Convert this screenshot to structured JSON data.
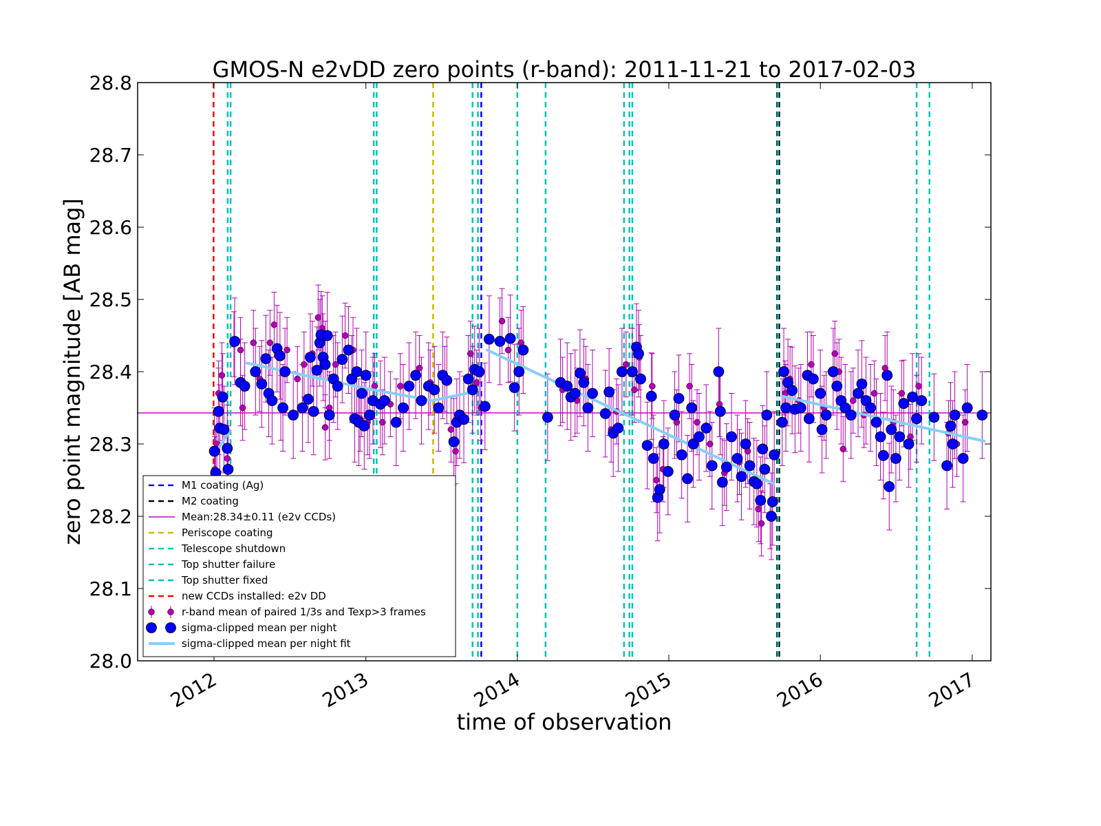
{
  "chart_data": {
    "type": "scatter",
    "title": "GMOS-N e2vDD zero points (r-band): 2011-11-21 to 2017-02-03",
    "xlabel": "time of observation",
    "ylabel": "zero point magnitude [AB mag]",
    "xlim": [
      "2011-07-01",
      "2017-02-15"
    ],
    "ylim": [
      28.0,
      28.8
    ],
    "x_ticks": [
      "2012",
      "2013",
      "2014",
      "2015",
      "2016",
      "2017"
    ],
    "y_ticks": [
      "28.0",
      "28.1",
      "28.2",
      "28.3",
      "28.4",
      "28.5",
      "28.6",
      "28.7",
      "28.8"
    ],
    "grid": false,
    "legend_position": "lower-left",
    "colors": {
      "m1": "#0000ff",
      "m2": "#000000",
      "mean": "#cc00cc",
      "periscope": "#ccb800",
      "shutdown": "#00c2b8",
      "new_ccds": "#ff0000",
      "frames": "#b000b0",
      "night": "#0000ff",
      "fit": "#87cefa"
    },
    "mean": {
      "value": 28.343,
      "label": "Mean:28.34±0.11 (e2v CCDs)"
    },
    "events": [
      {
        "key": "m1",
        "label": "M1 coating (Ag)",
        "dates": [
          "2013-10-06"
        ]
      },
      {
        "key": "m2",
        "label": "M2 coating",
        "dates": [
          "2015-09-19",
          "2015-09-24"
        ]
      },
      {
        "key": "periscope",
        "label": "Periscope coating",
        "dates": [
          "2013-06-12"
        ]
      },
      {
        "key": "shutdown",
        "label": "Telescope shutdown",
        "dates": [
          "2012-02-03",
          "2013-01-20",
          "2013-09-15",
          "2014-01-01",
          "2014-09-15",
          "2015-09-21"
        ]
      },
      {
        "key": "shutdown",
        "label": "Top shutter failure",
        "dates": [
          "2012-02-10",
          "2013-01-27",
          "2013-09-28",
          "2014-03-10",
          "2014-10-05",
          "2016-08-20"
        ]
      },
      {
        "key": "shutdown",
        "label": "Top shutter fixed",
        "dates": [
          "2014-09-28",
          "2016-09-20"
        ]
      },
      {
        "key": "new_ccds",
        "label": "new CCDs installed: e2v DD",
        "dates": [
          "2011-12-31"
        ]
      }
    ],
    "series": [
      {
        "key": "frames",
        "name": "r-band mean of paired 1/3s and Texp>3 frames",
        "type": "scatter-errorbar"
      },
      {
        "key": "night",
        "name": "sigma-clipped mean per night",
        "type": "scatter"
      },
      {
        "key": "fit",
        "name": "sigma-clipped mean per night fit",
        "type": "line"
      }
    ],
    "fit_segments": [
      {
        "x": [
          "2011-12-31",
          "2012-02-08"
        ],
        "y": [
          28.284,
          28.318
        ]
      },
      {
        "x": [
          "2012-03-20",
          "2013-01-10",
          "2013-06-10",
          "2013-09-15"
        ],
        "y": [
          28.412,
          28.376,
          28.36,
          28.372
        ]
      },
      {
        "x": [
          "2013-10-20",
          "2015-09-10"
        ],
        "y": [
          28.43,
          28.245
        ]
      },
      {
        "x": [
          "2015-10-01",
          "2017-01-30"
        ],
        "y": [
          28.366,
          28.304
        ]
      }
    ],
    "night_points": [
      [
        "2012-01-02",
        28.29
      ],
      [
        "2012-01-05",
        28.26
      ],
      [
        "2012-01-12",
        28.345
      ],
      [
        "2012-01-15",
        28.322
      ],
      [
        "2012-01-22",
        28.365
      ],
      [
        "2012-01-25",
        28.32
      ],
      [
        "2012-02-02",
        28.294
      ],
      [
        "2012-02-04",
        28.265
      ],
      [
        "2012-02-20",
        28.442
      ],
      [
        "2012-03-05",
        28.385
      ],
      [
        "2012-03-15",
        28.38
      ],
      [
        "2012-04-10",
        28.4
      ],
      [
        "2012-04-25",
        28.383
      ],
      [
        "2012-05-05",
        28.418
      ],
      [
        "2012-05-12",
        28.37
      ],
      [
        "2012-05-20",
        28.36
      ],
      [
        "2012-06-01",
        28.432
      ],
      [
        "2012-06-08",
        28.422
      ],
      [
        "2012-06-15",
        28.35
      ],
      [
        "2012-06-20",
        28.4
      ],
      [
        "2012-07-10",
        28.34
      ],
      [
        "2012-08-01",
        28.35
      ],
      [
        "2012-08-15",
        28.362
      ],
      [
        "2012-08-20",
        28.42
      ],
      [
        "2012-08-28",
        28.345
      ],
      [
        "2012-09-05",
        28.402
      ],
      [
        "2012-09-12",
        28.44
      ],
      [
        "2012-09-15",
        28.451
      ],
      [
        "2012-09-20",
        28.42
      ],
      [
        "2012-09-25",
        28.41
      ],
      [
        "2012-09-30",
        28.45
      ],
      [
        "2012-10-05",
        28.34
      ],
      [
        "2012-10-15",
        28.39
      ],
      [
        "2012-10-25",
        28.38
      ],
      [
        "2012-11-05",
        28.417
      ],
      [
        "2012-11-20",
        28.43
      ],
      [
        "2012-11-28",
        28.39
      ],
      [
        "2012-12-05",
        28.335
      ],
      [
        "2012-12-10",
        28.4
      ],
      [
        "2012-12-15",
        28.33
      ],
      [
        "2012-12-22",
        28.37
      ],
      [
        "2012-12-28",
        28.325
      ],
      [
        "2013-01-01",
        28.395
      ],
      [
        "2013-01-10",
        28.34
      ],
      [
        "2013-01-18",
        28.36
      ],
      [
        "2013-02-05",
        28.355
      ],
      [
        "2013-02-15",
        28.36
      ],
      [
        "2013-03-15",
        28.33
      ],
      [
        "2013-04-01",
        28.35
      ],
      [
        "2013-04-15",
        28.38
      ],
      [
        "2013-05-01",
        28.395
      ],
      [
        "2013-05-15",
        28.36
      ],
      [
        "2013-06-01",
        28.38
      ],
      [
        "2013-06-15",
        28.375
      ],
      [
        "2013-06-25",
        28.35
      ],
      [
        "2013-07-05",
        28.395
      ],
      [
        "2013-07-15",
        28.388
      ],
      [
        "2013-08-01",
        28.303
      ],
      [
        "2013-08-08",
        28.33
      ],
      [
        "2013-08-15",
        28.34
      ],
      [
        "2013-08-25",
        28.334
      ],
      [
        "2013-09-05",
        28.39
      ],
      [
        "2013-09-15",
        28.375
      ],
      [
        "2013-09-20",
        28.403
      ],
      [
        "2013-10-01",
        28.4
      ],
      [
        "2013-10-15",
        28.352
      ],
      [
        "2013-10-25",
        28.445
      ],
      [
        "2013-11-20",
        28.442
      ],
      [
        "2013-12-15",
        28.446
      ],
      [
        "2013-12-25",
        28.378
      ],
      [
        "2014-01-05",
        28.4
      ],
      [
        "2014-01-15",
        28.43
      ],
      [
        "2014-03-15",
        28.337
      ],
      [
        "2014-04-15",
        28.385
      ],
      [
        "2014-05-01",
        28.38
      ],
      [
        "2014-05-10",
        28.365
      ],
      [
        "2014-05-20",
        28.37
      ],
      [
        "2014-06-01",
        28.398
      ],
      [
        "2014-06-10",
        28.385
      ],
      [
        "2014-06-20",
        28.35
      ],
      [
        "2014-07-01",
        28.37
      ],
      [
        "2014-08-01",
        28.342
      ],
      [
        "2014-08-10",
        28.372
      ],
      [
        "2014-08-20",
        28.315
      ],
      [
        "2014-09-01",
        28.322
      ],
      [
        "2014-09-10",
        28.4
      ],
      [
        "2014-10-05",
        28.4
      ],
      [
        "2014-10-15",
        28.434
      ],
      [
        "2014-10-20",
        28.425
      ],
      [
        "2014-10-25",
        28.39
      ],
      [
        "2014-11-10",
        28.298
      ],
      [
        "2014-11-20",
        28.366
      ],
      [
        "2014-11-25",
        28.28
      ],
      [
        "2014-12-05",
        28.226
      ],
      [
        "2014-12-10",
        28.237
      ],
      [
        "2014-12-20",
        28.3
      ],
      [
        "2014-12-30",
        28.262
      ],
      [
        "2015-01-15",
        28.34
      ],
      [
        "2015-01-25",
        28.363
      ],
      [
        "2015-02-01",
        28.285
      ],
      [
        "2015-02-15",
        28.252
      ],
      [
        "2015-02-25",
        28.35
      ],
      [
        "2015-03-01",
        28.3
      ],
      [
        "2015-03-15",
        28.31
      ],
      [
        "2015-04-01",
        28.322
      ],
      [
        "2015-04-15",
        28.27
      ],
      [
        "2015-05-01",
        28.4
      ],
      [
        "2015-05-05",
        28.345
      ],
      [
        "2015-05-10",
        28.247
      ],
      [
        "2015-05-20",
        28.268
      ],
      [
        "2015-06-01",
        28.31
      ],
      [
        "2015-06-15",
        28.28
      ],
      [
        "2015-06-25",
        28.255
      ],
      [
        "2015-07-05",
        28.3
      ],
      [
        "2015-07-15",
        28.27
      ],
      [
        "2015-07-25",
        28.248
      ],
      [
        "2015-08-01",
        28.245
      ],
      [
        "2015-08-10",
        28.222
      ],
      [
        "2015-08-15",
        28.293
      ],
      [
        "2015-08-20",
        28.265
      ],
      [
        "2015-08-25",
        28.34
      ],
      [
        "2015-09-05",
        28.2
      ],
      [
        "2015-09-08",
        28.22
      ],
      [
        "2015-09-12",
        28.285
      ],
      [
        "2015-10-01",
        28.33
      ],
      [
        "2015-10-05",
        28.4
      ],
      [
        "2015-10-10",
        28.35
      ],
      [
        "2015-10-15",
        28.385
      ],
      [
        "2015-10-25",
        28.374
      ],
      [
        "2015-11-01",
        28.348
      ],
      [
        "2015-11-15",
        28.35
      ],
      [
        "2015-12-01",
        28.395
      ],
      [
        "2015-12-05",
        28.335
      ],
      [
        "2015-12-15",
        28.39
      ],
      [
        "2016-01-01",
        28.37
      ],
      [
        "2016-01-05",
        28.32
      ],
      [
        "2016-01-15",
        28.34
      ],
      [
        "2016-02-01",
        28.4
      ],
      [
        "2016-02-10",
        28.38
      ],
      [
        "2016-02-20",
        28.36
      ],
      [
        "2016-03-01",
        28.35
      ],
      [
        "2016-03-15",
        28.34
      ],
      [
        "2016-04-01",
        28.37
      ],
      [
        "2016-04-10",
        28.383
      ],
      [
        "2016-04-20",
        28.36
      ],
      [
        "2016-05-01",
        28.35
      ],
      [
        "2016-05-15",
        28.33
      ],
      [
        "2016-05-25",
        28.31
      ],
      [
        "2016-06-01",
        28.284
      ],
      [
        "2016-06-10",
        28.395
      ],
      [
        "2016-06-15",
        28.241
      ],
      [
        "2016-06-20",
        28.32
      ],
      [
        "2016-07-01",
        28.28
      ],
      [
        "2016-07-10",
        28.31
      ],
      [
        "2016-07-20",
        28.356
      ],
      [
        "2016-08-01",
        28.3
      ],
      [
        "2016-08-10",
        28.365
      ],
      [
        "2016-08-20",
        28.335
      ],
      [
        "2016-09-01",
        28.36
      ],
      [
        "2016-10-01",
        28.337
      ],
      [
        "2016-11-01",
        28.27
      ],
      [
        "2016-11-10",
        28.325
      ],
      [
        "2016-11-15",
        28.3
      ],
      [
        "2016-11-20",
        28.34
      ],
      [
        "2016-12-10",
        28.28
      ],
      [
        "2016-12-20",
        28.35
      ],
      [
        "2017-01-25",
        28.34
      ]
    ],
    "frame_points": [
      [
        "2012-01-01",
        28.22
      ],
      [
        "2012-01-03",
        28.265
      ],
      [
        "2012-01-08",
        28.3
      ],
      [
        "2012-01-12",
        28.37
      ],
      [
        "2012-01-20",
        28.395
      ],
      [
        "2012-02-02",
        28.28
      ],
      [
        "2012-02-18",
        28.438
      ],
      [
        "2012-03-05",
        28.43
      ],
      [
        "2012-03-10",
        28.35
      ],
      [
        "2012-04-05",
        28.44
      ],
      [
        "2012-04-20",
        28.39
      ],
      [
        "2012-05-15",
        28.44
      ],
      [
        "2012-05-25",
        28.465
      ],
      [
        "2012-06-10",
        28.35
      ],
      [
        "2012-06-25",
        28.43
      ],
      [
        "2012-07-20",
        28.39
      ],
      [
        "2012-08-05",
        28.41
      ],
      [
        "2012-08-25",
        28.425
      ],
      [
        "2012-09-08",
        28.475
      ],
      [
        "2012-09-18",
        28.46
      ],
      [
        "2012-09-25",
        28.323
      ],
      [
        "2012-10-05",
        28.35
      ],
      [
        "2012-10-20",
        28.41
      ],
      [
        "2012-11-12",
        28.45
      ],
      [
        "2012-12-01",
        28.43
      ],
      [
        "2012-12-18",
        28.335
      ],
      [
        "2013-01-05",
        28.33
      ],
      [
        "2013-01-22",
        28.38
      ],
      [
        "2013-02-10",
        28.33
      ],
      [
        "2013-03-01",
        28.355
      ],
      [
        "2013-03-25",
        28.38
      ],
      [
        "2013-05-10",
        28.405
      ],
      [
        "2013-06-05",
        28.385
      ],
      [
        "2013-07-10",
        28.39
      ],
      [
        "2013-07-25",
        28.32
      ],
      [
        "2013-08-05",
        28.29
      ],
      [
        "2013-09-10",
        28.425
      ],
      [
        "2013-09-25",
        28.385
      ],
      [
        "2013-10-05",
        28.35
      ],
      [
        "2013-11-25",
        28.47
      ],
      [
        "2013-12-10",
        28.43
      ],
      [
        "2014-01-10",
        28.44
      ],
      [
        "2014-04-20",
        28.375
      ],
      [
        "2014-05-25",
        28.36
      ],
      [
        "2014-06-15",
        28.39
      ],
      [
        "2014-08-15",
        28.32
      ],
      [
        "2014-08-28",
        28.345
      ],
      [
        "2014-09-20",
        28.41
      ],
      [
        "2014-10-10",
        28.375
      ],
      [
        "2014-10-22",
        28.42
      ],
      [
        "2014-11-22",
        28.38
      ],
      [
        "2014-12-02",
        28.25
      ],
      [
        "2014-12-18",
        28.265
      ],
      [
        "2015-01-20",
        28.33
      ],
      [
        "2015-02-20",
        28.38
      ],
      [
        "2015-03-10",
        28.33
      ],
      [
        "2015-04-10",
        28.3
      ],
      [
        "2015-05-03",
        28.355
      ],
      [
        "2015-05-15",
        28.26
      ],
      [
        "2015-06-20",
        28.275
      ],
      [
        "2015-07-10",
        28.29
      ],
      [
        "2015-08-05",
        28.21
      ],
      [
        "2015-08-12",
        28.19
      ],
      [
        "2015-09-02",
        28.2
      ],
      [
        "2015-10-08",
        28.37
      ],
      [
        "2015-10-20",
        28.39
      ],
      [
        "2015-11-10",
        28.36
      ],
      [
        "2015-12-10",
        28.41
      ],
      [
        "2016-01-10",
        28.35
      ],
      [
        "2016-02-05",
        28.425
      ],
      [
        "2016-02-15",
        28.4
      ],
      [
        "2016-02-25",
        28.293
      ],
      [
        "2016-03-20",
        28.36
      ],
      [
        "2016-04-15",
        28.34
      ],
      [
        "2016-05-10",
        28.37
      ],
      [
        "2016-06-05",
        28.405
      ],
      [
        "2016-06-25",
        28.33
      ],
      [
        "2016-07-15",
        28.37
      ],
      [
        "2016-08-05",
        28.31
      ],
      [
        "2016-08-25",
        28.38
      ],
      [
        "2016-11-05",
        28.315
      ],
      [
        "2016-11-25",
        28.3
      ],
      [
        "2016-12-15",
        28.33
      ]
    ]
  }
}
